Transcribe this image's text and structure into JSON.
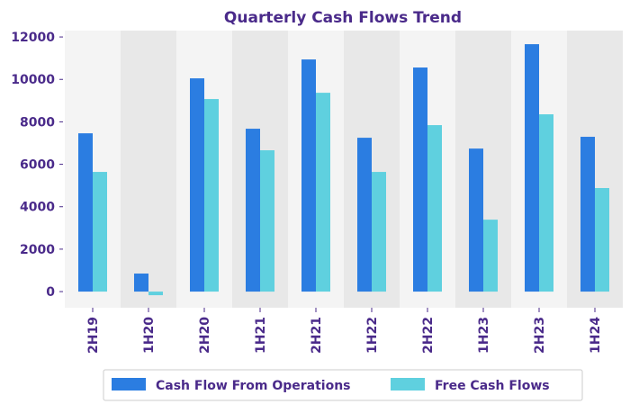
{
  "chart_data": {
    "type": "bar",
    "title": "Quarterly Cash Flows Trend",
    "xlabel": "",
    "ylabel": "",
    "categories": [
      "2H19",
      "1H20",
      "2H20",
      "1H21",
      "2H21",
      "1H22",
      "2H22",
      "1H23",
      "2H23",
      "1H24"
    ],
    "series": [
      {
        "name": "Cash Flow From Operations",
        "color": "#2b7de1",
        "values": [
          7460,
          850,
          10050,
          7675,
          10940,
          7250,
          10560,
          6740,
          11660,
          7295
        ]
      },
      {
        "name": "Free Cash Flows",
        "color": "#5fd0df",
        "values": [
          5640,
          -170,
          9075,
          6660,
          9370,
          5640,
          7845,
          3390,
          8355,
          4880
        ]
      }
    ],
    "ylim": [
      -760,
      12300
    ],
    "yticks": [
      0,
      2000,
      4000,
      6000,
      8000,
      10000,
      12000
    ],
    "grid": false,
    "legend": "bottom",
    "band_colors": [
      "#f4f4f4",
      "#e8e8e8"
    ],
    "text_color": "#4a2a8a"
  }
}
